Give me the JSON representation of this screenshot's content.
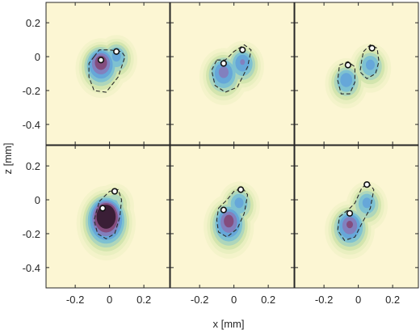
{
  "chart_data": {
    "type": "heatmap",
    "layout": {
      "rows": 2,
      "cols": 3
    },
    "xlabel": "x [mm]",
    "ylabel": "z [mm]",
    "xlim": [
      -0.37,
      0.35
    ],
    "ylim": [
      -0.52,
      0.32
    ],
    "xticks": [
      -0.2,
      0,
      0.2
    ],
    "yticks": [
      0.2,
      0,
      -0.2,
      -0.4
    ],
    "xtick_labels": [
      "-0.2",
      "0",
      "0.2"
    ],
    "ytick_labels": [
      "0.2",
      "0",
      "-0.2",
      "-0.4"
    ],
    "background_color": "#fcf6d3",
    "colors": {
      "low": "#fcf6d3",
      "mid_green": "#cfe0a8",
      "blue": "#5bb2de",
      "purple": "#9a5a8e",
      "dark": "#3a1f36"
    },
    "panels": [
      {
        "row": 0,
        "col": 0,
        "sources": [
          {
            "x": -0.05,
            "z": -0.03,
            "amp": 0.9,
            "sx": 0.05,
            "sz": 0.055
          },
          {
            "x": 0.04,
            "z": 0.02,
            "amp": 0.55,
            "sx": 0.045,
            "sz": 0.05
          }
        ],
        "markers": [
          {
            "x": -0.05,
            "z": -0.02
          },
          {
            "x": 0.04,
            "z": 0.03
          }
        ],
        "contours": [
          [
            [
              -0.09,
              0.0
            ],
            [
              -0.06,
              0.04
            ],
            [
              0.0,
              0.04
            ],
            [
              0.07,
              0.03
            ],
            [
              0.09,
              0.0
            ],
            [
              0.05,
              -0.12
            ],
            [
              -0.02,
              -0.21
            ],
            [
              -0.09,
              -0.2
            ],
            [
              -0.12,
              -0.12
            ],
            [
              -0.12,
              -0.04
            ]
          ]
        ]
      },
      {
        "row": 0,
        "col": 1,
        "sources": [
          {
            "x": -0.06,
            "z": -0.08,
            "amp": 0.7,
            "sx": 0.05,
            "sz": 0.055
          },
          {
            "x": 0.05,
            "z": -0.02,
            "amp": 0.65,
            "sx": 0.045,
            "sz": 0.05
          }
        ],
        "markers": [
          {
            "x": -0.06,
            "z": -0.04
          },
          {
            "x": 0.05,
            "z": 0.04
          }
        ],
        "contours": [
          [
            [
              -0.1,
              -0.02
            ],
            [
              -0.05,
              -0.02
            ],
            [
              0.0,
              0.03
            ],
            [
              0.06,
              0.07
            ],
            [
              0.1,
              0.04
            ],
            [
              0.08,
              -0.06
            ],
            [
              0.02,
              -0.18
            ],
            [
              -0.05,
              -0.21
            ],
            [
              -0.11,
              -0.17
            ],
            [
              -0.13,
              -0.08
            ]
          ]
        ]
      },
      {
        "row": 0,
        "col": 2,
        "sources": [
          {
            "x": -0.07,
            "z": -0.12,
            "amp": 0.6,
            "sx": 0.045,
            "sz": 0.05
          },
          {
            "x": 0.07,
            "z": -0.03,
            "amp": 0.55,
            "sx": 0.045,
            "sz": 0.05
          }
        ],
        "markers": [
          {
            "x": -0.06,
            "z": -0.05
          },
          {
            "x": 0.08,
            "z": 0.05
          }
        ],
        "contours": [
          [
            [
              -0.11,
              -0.05
            ],
            [
              -0.06,
              -0.03
            ],
            [
              -0.02,
              -0.06
            ],
            [
              -0.02,
              -0.15
            ],
            [
              -0.05,
              -0.22
            ],
            [
              -0.1,
              -0.22
            ],
            [
              -0.12,
              -0.14
            ]
          ],
          [
            [
              0.03,
              0.03
            ],
            [
              0.07,
              0.07
            ],
            [
              0.11,
              0.05
            ],
            [
              0.12,
              -0.03
            ],
            [
              0.1,
              -0.1
            ],
            [
              0.05,
              -0.13
            ],
            [
              0.01,
              -0.09
            ],
            [
              0.02,
              -0.02
            ]
          ]
        ]
      },
      {
        "row": 1,
        "col": 0,
        "sources": [
          {
            "x": -0.02,
            "z": -0.1,
            "amp": 1.25,
            "sx": 0.055,
            "sz": 0.065
          },
          {
            "x": 0.03,
            "z": 0.0,
            "amp": 0.4,
            "sx": 0.045,
            "sz": 0.05
          }
        ],
        "markers": [
          {
            "x": -0.04,
            "z": -0.05
          },
          {
            "x": 0.03,
            "z": 0.05
          }
        ],
        "contours": [
          [
            [
              -0.06,
              -0.01
            ],
            [
              0.0,
              0.05
            ],
            [
              0.05,
              0.06
            ],
            [
              0.07,
              0.0
            ],
            [
              0.06,
              -0.1
            ],
            [
              0.03,
              -0.2
            ],
            [
              -0.02,
              -0.23
            ],
            [
              -0.07,
              -0.2
            ],
            [
              -0.09,
              -0.12
            ]
          ]
        ]
      },
      {
        "row": 1,
        "col": 1,
        "sources": [
          {
            "x": -0.03,
            "z": -0.12,
            "amp": 0.85,
            "sx": 0.05,
            "sz": 0.06
          },
          {
            "x": 0.03,
            "z": 0.0,
            "amp": 0.55,
            "sx": 0.045,
            "sz": 0.05
          }
        ],
        "markers": [
          {
            "x": -0.06,
            "z": -0.06
          },
          {
            "x": 0.04,
            "z": 0.06
          }
        ],
        "contours": [
          [
            [
              -0.09,
              -0.05
            ],
            [
              -0.04,
              0.0
            ],
            [
              0.0,
              0.05
            ],
            [
              0.05,
              0.07
            ],
            [
              0.08,
              0.03
            ],
            [
              0.06,
              -0.08
            ],
            [
              0.02,
              -0.17
            ],
            [
              -0.04,
              -0.22
            ],
            [
              -0.09,
              -0.19
            ],
            [
              -0.1,
              -0.12
            ]
          ]
        ]
      },
      {
        "row": 1,
        "col": 2,
        "sources": [
          {
            "x": -0.05,
            "z": -0.14,
            "amp": 0.8,
            "sx": 0.05,
            "sz": 0.055
          },
          {
            "x": 0.05,
            "z": 0.0,
            "amp": 0.55,
            "sx": 0.045,
            "sz": 0.05
          }
        ],
        "markers": [
          {
            "x": -0.05,
            "z": -0.08
          },
          {
            "x": 0.05,
            "z": 0.09
          }
        ],
        "contours": [
          [
            [
              -0.11,
              -0.1
            ],
            [
              -0.06,
              -0.06
            ],
            [
              -0.02,
              -0.02
            ],
            [
              0.02,
              0.07
            ],
            [
              0.06,
              0.1
            ],
            [
              0.09,
              0.06
            ],
            [
              0.07,
              -0.05
            ],
            [
              0.02,
              -0.14
            ],
            [
              -0.02,
              -0.22
            ],
            [
              -0.08,
              -0.24
            ],
            [
              -0.12,
              -0.18
            ]
          ]
        ]
      }
    ]
  }
}
